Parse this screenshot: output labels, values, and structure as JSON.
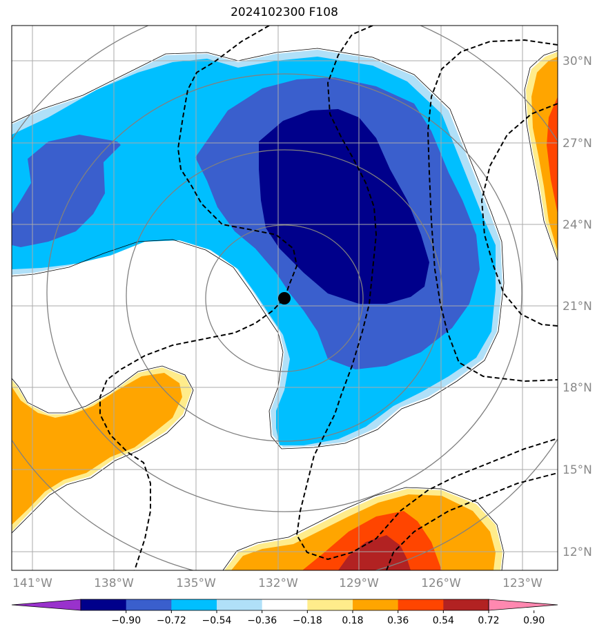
{
  "map": {
    "title": "2024102300 F108",
    "lon_labels": [
      "141°W",
      "138°W",
      "135°W",
      "132°W",
      "129°W",
      "126°W",
      "123°W"
    ],
    "lat_labels": [
      "30°N",
      "27°N",
      "24°N",
      "21°N",
      "18°N",
      "15°N",
      "12°N"
    ],
    "center_marker": {
      "lon": -132,
      "lat": 21.3
    },
    "extent": {
      "lon_min": -141.8,
      "lon_max": -121.8,
      "lat_min": 11.3,
      "lat_max": 31.3
    }
  },
  "colorbar": {
    "ticks": [
      "−0.90",
      "−0.72",
      "−0.54",
      "−0.36",
      "−0.18",
      "0.18",
      "0.36",
      "0.54",
      "0.72",
      "0.90"
    ],
    "colors": [
      "#9932cc",
      "#00008b",
      "#3a5fcd",
      "#00bfff",
      "#b0e0f8",
      "#ffffff",
      "#ffec8b",
      "#ffa500",
      "#ff4500",
      "#b22222",
      "#ff88b0"
    ]
  }
}
